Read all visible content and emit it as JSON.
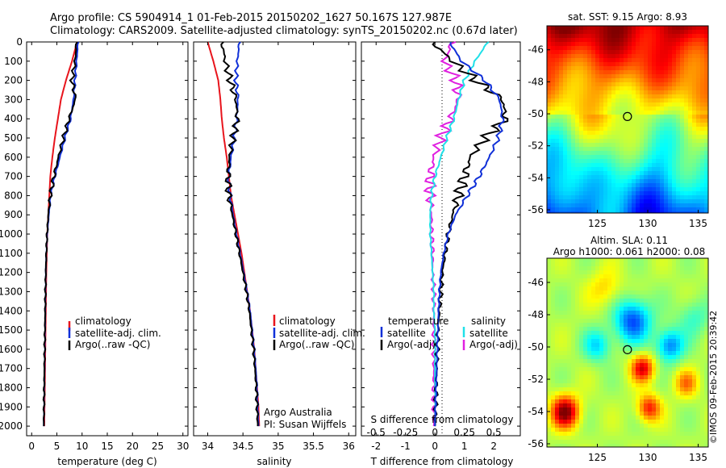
{
  "header": {
    "line1": "Argo profile: CS 5904914_1 01-Feb-2015 20150202_1627 50.167S 127.987E",
    "line2": "Climatology: CARS2009. Satellite-adjusted climatology: synTS_20150202.nc (0.67d later)"
  },
  "colors": {
    "climatology": "#e8141c",
    "satellite": "#1030d8",
    "argo": "#000000",
    "sat_temp": "#20e0e8",
    "argo_salt": "#e020e0"
  },
  "y_ticks": [
    "0",
    "100",
    "200",
    "300",
    "400",
    "500",
    "600",
    "700",
    "800",
    "900",
    "1000",
    "1100",
    "1200",
    "1300",
    "1400",
    "1500",
    "1600",
    "1700",
    "1800",
    "1900",
    "2000"
  ],
  "panels": {
    "temp": {
      "xlabel": "temperature (deg C)",
      "xticks": [
        "0",
        "5",
        "10",
        "15",
        "20",
        "25",
        "30"
      ],
      "legend": [
        "climatology",
        "satellite-adj. clim.",
        "Argo(..raw -QC)"
      ]
    },
    "salt": {
      "xlabel": "salinity",
      "xticks": [
        "34",
        "34.5",
        "35",
        "35.5",
        "36"
      ],
      "legend": [
        "climatology",
        "satellite-adj. clim.",
        "Argo(..raw -QC)"
      ],
      "credit1": "Argo Australia",
      "credit2": "PI: Susan Wijffels"
    },
    "diff": {
      "xlabel": "T difference from climatology",
      "top_label": "S difference from climatology",
      "xticks_t": [
        "-2",
        "-1",
        "0",
        "1",
        "2"
      ],
      "xticks_s": [
        "-0.5",
        "-0.25",
        "0",
        "0.25",
        "0.5"
      ],
      "legend_temp_title": "temperature",
      "legend_salt_title": "salinity",
      "legend_temp": [
        "satellite",
        "Argo(-adj)"
      ],
      "legend_salt": [
        "satellite",
        "Argo(-adj)"
      ]
    }
  },
  "map_sst": {
    "title": "sat. SST: 9.15 Argo: 8.93",
    "yticks": [
      "-46",
      "-48",
      "-50",
      "-52",
      "-54",
      "-56"
    ],
    "xticks": [
      "125",
      "130",
      "135"
    ]
  },
  "map_sla": {
    "title1": "Altim. SLA: 0.11",
    "title2": "Argo h1000: 0.061 h2000: 0.08",
    "yticks": [
      "-46",
      "-48",
      "-50",
      "-52",
      "-54",
      "-56"
    ],
    "xticks": [
      "125",
      "130",
      "135"
    ]
  },
  "stamp": "©IMOS 09-Feb-2015 20:39:42",
  "chart_data": [
    {
      "type": "line",
      "xlabel": "temperature (deg C)",
      "ylabel": "",
      "xlim": [
        -1,
        31
      ],
      "ylim": [
        2050,
        0
      ],
      "series": [
        {
          "name": "climatology",
          "x": [
            9.0,
            8.0,
            6.8,
            5.8,
            5.2,
            4.6,
            4.1,
            3.7,
            3.5,
            3.3,
            3.1,
            3.0,
            2.9,
            2.85,
            2.8,
            2.75,
            2.7,
            2.65,
            2.6,
            2.55,
            2.5
          ],
          "y": [
            0,
            100,
            200,
            300,
            400,
            500,
            600,
            700,
            800,
            900,
            1000,
            1100,
            1200,
            1300,
            1400,
            1500,
            1600,
            1700,
            1800,
            1900,
            2000
          ]
        },
        {
          "name": "satellite-adj. clim.",
          "x": [
            9.2,
            8.9,
            8.6,
            8.3,
            7.7,
            6.6,
            5.6,
            4.6,
            3.8,
            3.4,
            3.1,
            2.9,
            2.8,
            2.75,
            2.7,
            2.65,
            2.6,
            2.55,
            2.5,
            2.45,
            2.4
          ],
          "y": [
            0,
            100,
            200,
            300,
            400,
            500,
            600,
            700,
            800,
            900,
            1000,
            1100,
            1200,
            1300,
            1400,
            1500,
            1600,
            1700,
            1800,
            1900,
            2000
          ]
        },
        {
          "name": "Argo(..raw -QC)",
          "x": [
            8.9,
            8.6,
            8.0,
            8.7,
            7.4,
            6.3,
            5.3,
            4.4,
            3.7,
            3.3,
            3.05,
            2.9,
            2.8,
            2.72,
            2.68,
            2.62,
            2.58,
            2.52,
            2.48,
            2.44,
            2.4
          ],
          "y": [
            0,
            100,
            200,
            300,
            400,
            500,
            600,
            700,
            800,
            900,
            1000,
            1100,
            1200,
            1300,
            1400,
            1500,
            1600,
            1700,
            1800,
            1900,
            2000
          ]
        }
      ]
    },
    {
      "type": "line",
      "xlabel": "salinity",
      "xlim": [
        33.8,
        36.1
      ],
      "ylim": [
        2050,
        0
      ],
      "series": [
        {
          "name": "climatology",
          "x": [
            34.0,
            34.08,
            34.15,
            34.18,
            34.2,
            34.23,
            34.27,
            34.3,
            34.33,
            34.38,
            34.43,
            34.48,
            34.52,
            34.56,
            34.6,
            34.63,
            34.66,
            34.68,
            34.7,
            34.72,
            34.73
          ],
          "y": [
            0,
            100,
            200,
            300,
            400,
            500,
            600,
            700,
            800,
            900,
            1000,
            1100,
            1200,
            1300,
            1400,
            1500,
            1600,
            1700,
            1800,
            1900,
            2000
          ]
        },
        {
          "name": "satellite-adj. clim.",
          "x": [
            34.45,
            34.42,
            34.4,
            34.43,
            34.41,
            34.38,
            34.33,
            34.3,
            34.32,
            34.36,
            34.41,
            34.46,
            34.51,
            34.56,
            34.6,
            34.63,
            34.66,
            34.68,
            34.7,
            34.71,
            34.72
          ],
          "y": [
            0,
            100,
            200,
            300,
            400,
            500,
            600,
            700,
            800,
            900,
            1000,
            1100,
            1200,
            1300,
            1400,
            1500,
            1600,
            1700,
            1800,
            1900,
            2000
          ]
        },
        {
          "name": "Argo(..raw -QC)",
          "x": [
            34.2,
            34.25,
            34.32,
            34.4,
            34.42,
            34.36,
            34.31,
            34.29,
            34.3,
            34.35,
            34.4,
            34.45,
            34.5,
            34.55,
            34.59,
            34.62,
            34.65,
            34.67,
            34.69,
            34.7,
            34.71
          ],
          "y": [
            0,
            100,
            200,
            300,
            400,
            500,
            600,
            700,
            800,
            900,
            1000,
            1100,
            1200,
            1300,
            1400,
            1500,
            1600,
            1700,
            1800,
            1900,
            2000
          ]
        }
      ]
    },
    {
      "type": "line",
      "xlabel": "T difference from climatology",
      "xlim": [
        -2.5,
        2.9
      ],
      "ylim": [
        2050,
        0
      ],
      "series": [
        {
          "name": "satellite",
          "x": [
            0.5,
            0.9,
            1.7,
            2.2,
            2.3,
            2.15,
            1.85,
            1.5,
            1.1,
            0.7,
            0.45,
            0.3,
            0.2,
            0.15,
            0.12,
            0.1,
            0.08,
            0.06,
            0.04,
            0.02,
            0.0
          ],
          "y": [
            0,
            100,
            200,
            300,
            400,
            500,
            600,
            700,
            800,
            900,
            1000,
            1100,
            1200,
            1300,
            1400,
            1500,
            1600,
            1700,
            1800,
            1900,
            2000
          ]
        },
        {
          "name": "Argo(-adj)",
          "x": [
            -0.1,
            0.6,
            1.4,
            2.3,
            2.4,
            1.7,
            1.2,
            1.0,
            0.8,
            0.6,
            0.45,
            0.35,
            0.25,
            0.2,
            0.15,
            0.1,
            0.08,
            0.06,
            0.04,
            0.02,
            0.0
          ],
          "y": [
            0,
            100,
            200,
            300,
            400,
            500,
            600,
            700,
            800,
            900,
            1000,
            1100,
            1200,
            1300,
            1400,
            1500,
            1600,
            1700,
            1800,
            1900,
            2000
          ]
        }
      ]
    },
    {
      "type": "line",
      "xlabel": "S difference from climatology",
      "xlim": [
        -0.625,
        0.725
      ],
      "ylim": [
        2050,
        0
      ],
      "series": [
        {
          "name": "satellite",
          "x": [
            0.45,
            0.34,
            0.25,
            0.2,
            0.16,
            0.1,
            0.05,
            0.0,
            -0.03,
            -0.04,
            -0.04,
            -0.03,
            -0.02,
            -0.01,
            -0.01,
            0.0,
            0.0,
            0.0,
            0.0,
            0.0,
            0.0
          ],
          "y": [
            0,
            100,
            200,
            300,
            400,
            500,
            600,
            700,
            800,
            900,
            1000,
            1100,
            1200,
            1300,
            1400,
            1500,
            1600,
            1700,
            1800,
            1900,
            2000
          ]
        },
        {
          "name": "Argo(-adj)",
          "x": [
            0.15,
            0.08,
            0.18,
            0.2,
            0.13,
            0.05,
            -0.01,
            -0.04,
            -0.04,
            -0.03,
            -0.03,
            -0.02,
            -0.02,
            -0.01,
            -0.01,
            -0.01,
            -0.01,
            -0.01,
            -0.01,
            -0.01,
            -0.01
          ],
          "y": [
            0,
            100,
            200,
            300,
            400,
            500,
            600,
            700,
            800,
            900,
            1000,
            1100,
            1200,
            1300,
            1400,
            1500,
            1600,
            1700,
            1800,
            1900,
            2000
          ]
        }
      ]
    },
    {
      "type": "heatmap",
      "title": "sat. SST: 9.15 Argo: 8.93",
      "xlim": [
        120,
        136
      ],
      "ylim": [
        -56.2,
        -44.5
      ],
      "marker": {
        "lon": 127.987,
        "lat": -50.167
      }
    },
    {
      "type": "heatmap",
      "title": "Altim. SLA: 0.11",
      "xlim": [
        120,
        136
      ],
      "ylim": [
        -56.2,
        -44.5
      ],
      "marker": {
        "lon": 127.987,
        "lat": -50.167
      }
    }
  ]
}
